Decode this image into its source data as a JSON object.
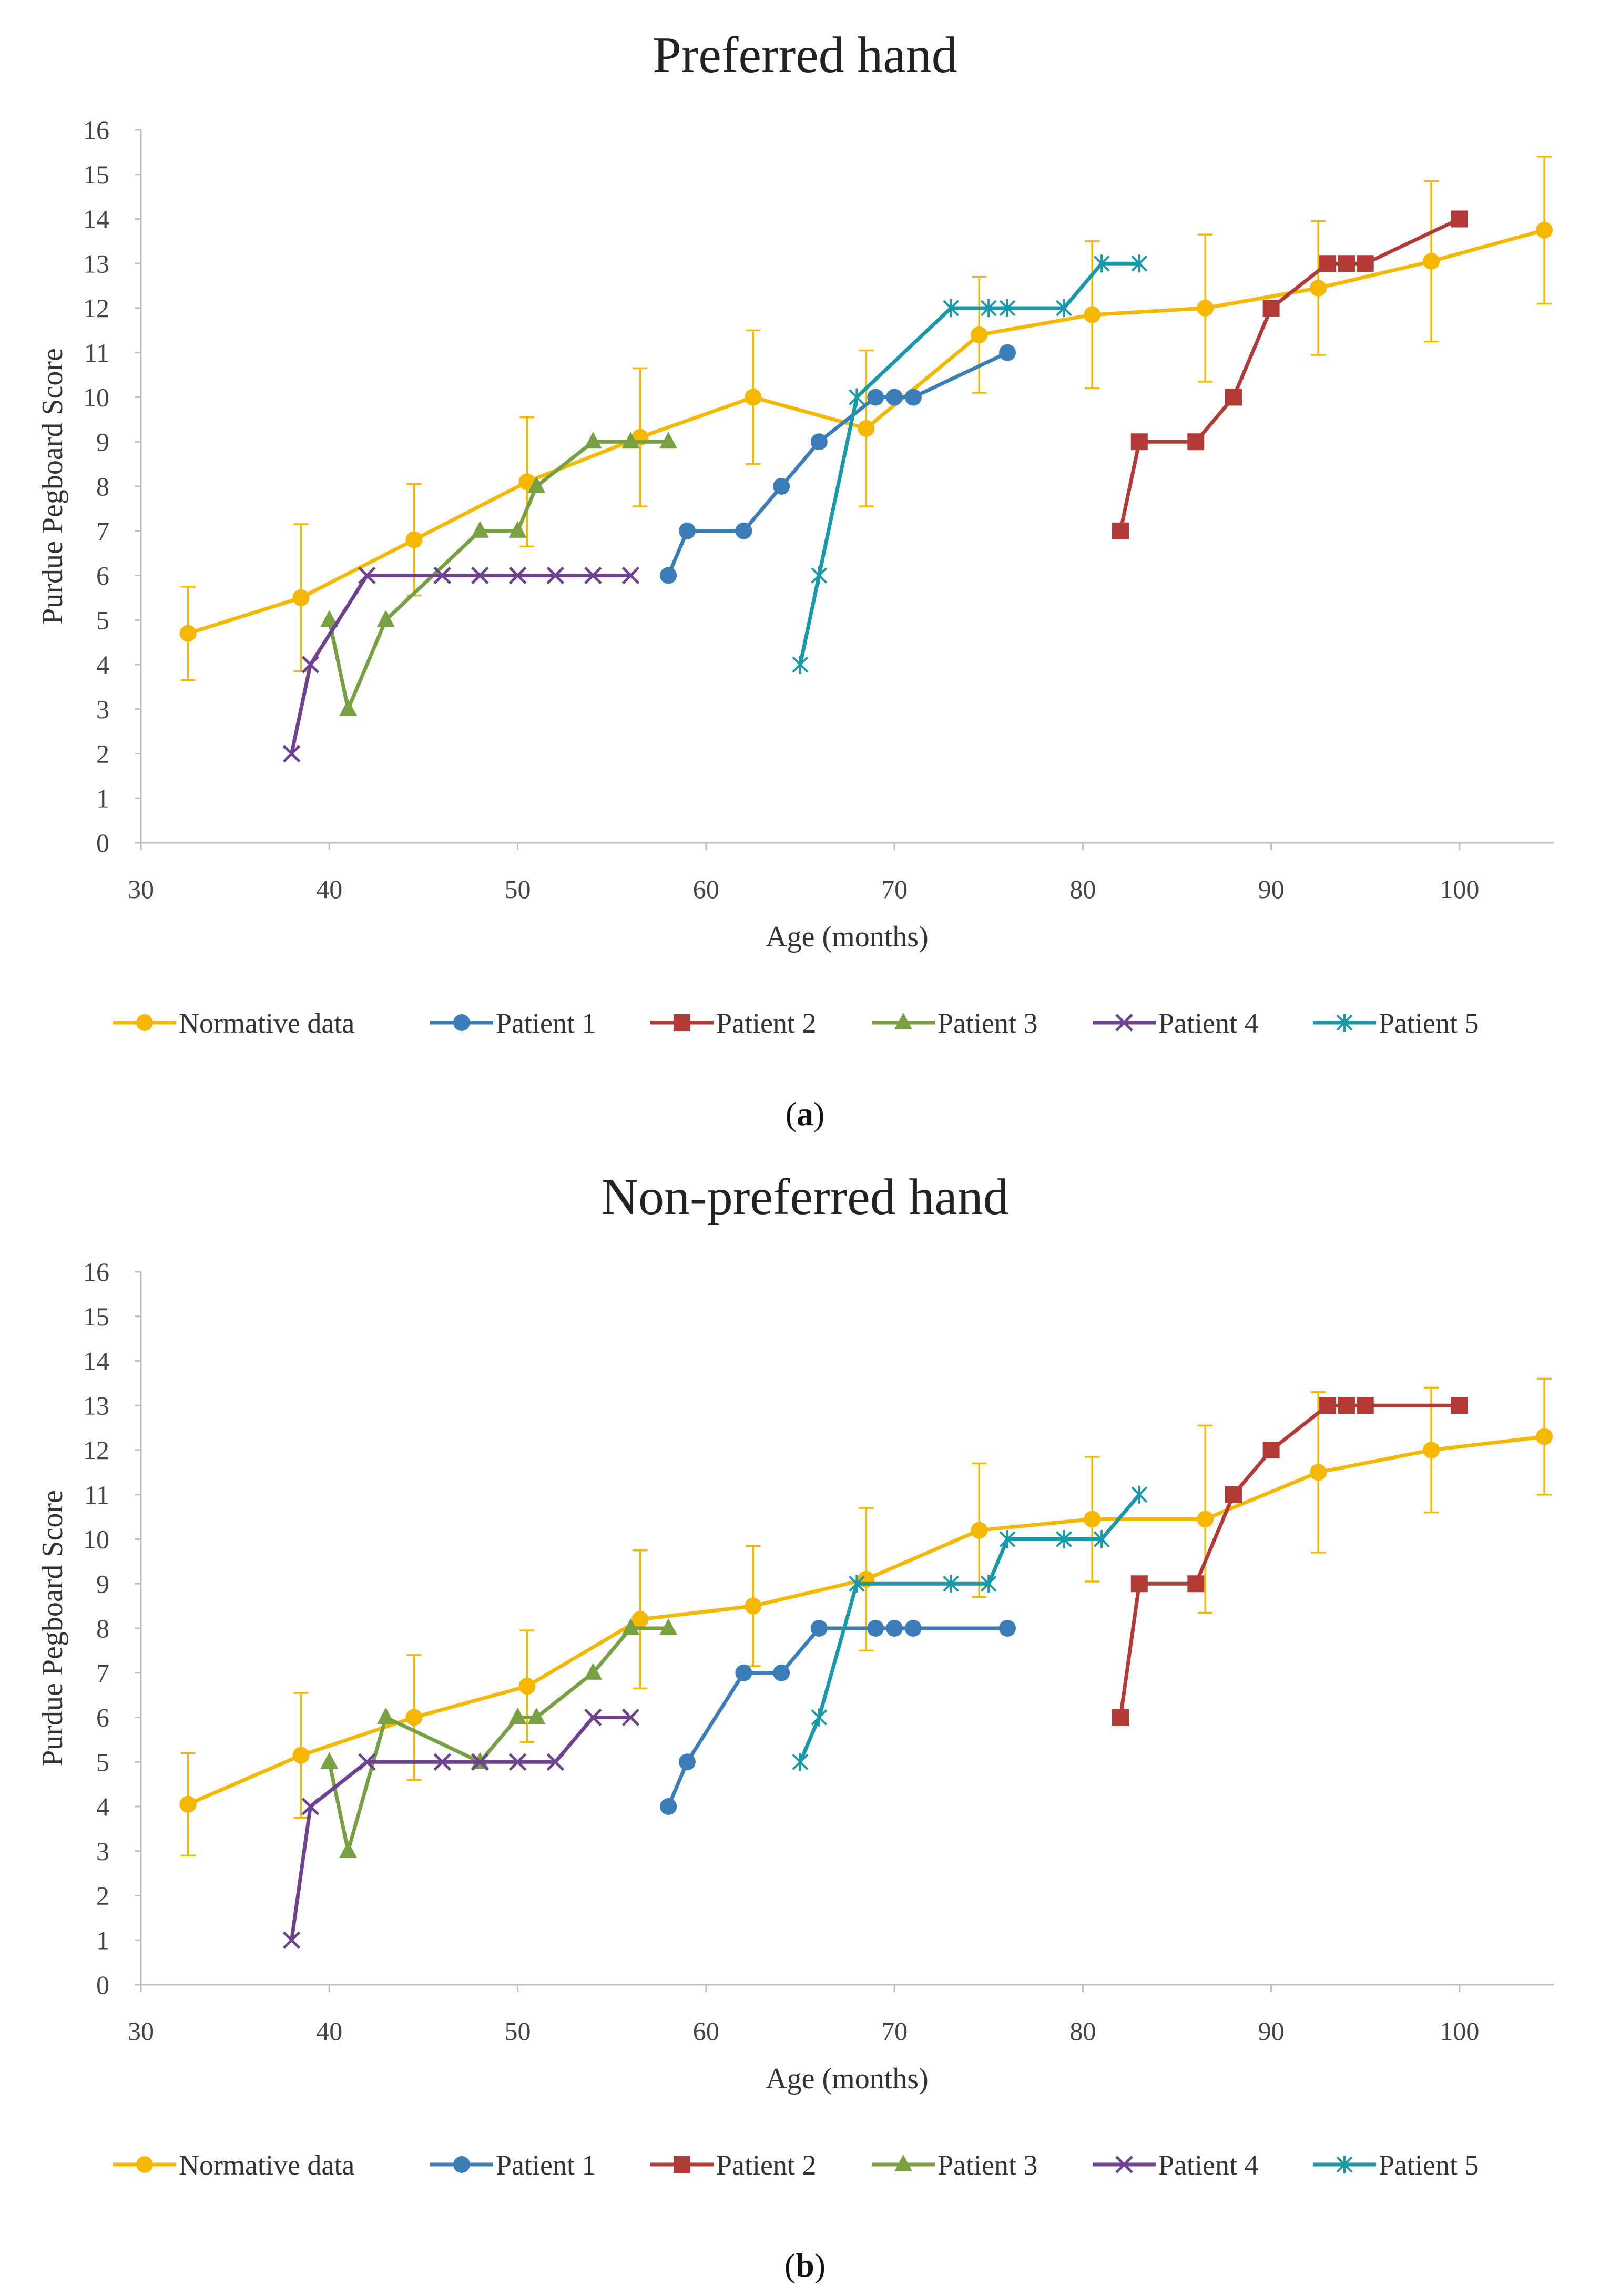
{
  "figure": {
    "colors": {
      "Normative data": "#F5B800",
      "Patient 1": "#3B7DB8",
      "Patient 2": "#B33A36",
      "Patient 3": "#77A043",
      "Patient 4": "#6E4291",
      "Patient 5": "#1799A9",
      "axis": "#BFBFBF"
    }
  },
  "chart_data": [
    {
      "type": "line",
      "title": "Preferred hand",
      "xlabel": "Age (months)",
      "ylabel": "Purdue Pegboard Score",
      "xlim": [
        30,
        105
      ],
      "ylim": [
        0,
        16
      ],
      "x_ticks": [
        30,
        40,
        50,
        60,
        70,
        80,
        90,
        100
      ],
      "y_ticks": [
        0,
        1,
        2,
        3,
        4,
        5,
        6,
        7,
        8,
        9,
        10,
        11,
        12,
        13,
        14,
        15,
        16
      ],
      "grid": false,
      "legend_position": "bottom",
      "caption_open": "(",
      "caption_letter": "a",
      "caption_close": ")",
      "series": [
        {
          "name": "Normative data",
          "marker": "circle",
          "x": [
            32.5,
            38.5,
            44.5,
            50.5,
            56.5,
            62.5,
            68.5,
            74.5,
            80.5,
            86.5,
            92.5,
            98.5,
            104.5
          ],
          "y": [
            4.7,
            5.5,
            6.8,
            8.1,
            9.1,
            10.0,
            9.3,
            11.4,
            11.85,
            12.0,
            12.45,
            13.05,
            13.75
          ],
          "error": [
            1.05,
            1.65,
            1.25,
            1.45,
            1.55,
            1.5,
            1.75,
            1.3,
            1.65,
            1.65,
            1.5,
            1.8,
            1.65
          ]
        },
        {
          "name": "Patient 1",
          "marker": "circle",
          "x": [
            58,
            59,
            62,
            64,
            66,
            69,
            70,
            71,
            76
          ],
          "y": [
            6,
            7,
            7,
            8,
            9,
            10,
            10,
            10,
            11
          ]
        },
        {
          "name": "Patient 2",
          "marker": "square",
          "x": [
            82,
            83,
            86,
            88,
            90,
            93,
            94,
            95,
            100
          ],
          "y": [
            7,
            9,
            9,
            10,
            12,
            13,
            13,
            13,
            14
          ]
        },
        {
          "name": "Patient 3",
          "marker": "triangle",
          "x": [
            40,
            41,
            43,
            48,
            50,
            51,
            54,
            56,
            58
          ],
          "y": [
            5,
            3,
            5,
            7,
            7,
            8,
            9,
            9,
            9
          ]
        },
        {
          "name": "Patient 4",
          "marker": "x",
          "x": [
            38,
            39,
            42,
            46,
            48,
            50,
            52,
            54,
            56
          ],
          "y": [
            2,
            4,
            6,
            6,
            6,
            6,
            6,
            6,
            6
          ]
        },
        {
          "name": "Patient 5",
          "marker": "star",
          "x": [
            65,
            66,
            68,
            73,
            75,
            76,
            79,
            81,
            83
          ],
          "y": [
            4,
            6,
            10,
            12,
            12,
            12,
            12,
            13,
            13
          ]
        }
      ]
    },
    {
      "type": "line",
      "title": "Non-preferred hand",
      "xlabel": "Age (months)",
      "ylabel": "Purdue Pegboard Score",
      "xlim": [
        30,
        105
      ],
      "ylim": [
        0,
        16
      ],
      "x_ticks": [
        30,
        40,
        50,
        60,
        70,
        80,
        90,
        100
      ],
      "y_ticks": [
        0,
        1,
        2,
        3,
        4,
        5,
        6,
        7,
        8,
        9,
        10,
        11,
        12,
        13,
        14,
        15,
        16
      ],
      "grid": false,
      "legend_position": "bottom",
      "caption_open": "(",
      "caption_letter": "b",
      "caption_close": ")",
      "series": [
        {
          "name": "Normative data",
          "marker": "circle",
          "x": [
            32.5,
            38.5,
            44.5,
            50.5,
            56.5,
            62.5,
            68.5,
            74.5,
            80.5,
            86.5,
            92.5,
            98.5,
            104.5
          ],
          "y": [
            4.05,
            5.15,
            6.0,
            6.7,
            8.2,
            8.5,
            9.1,
            10.2,
            10.45,
            10.45,
            11.5,
            12.0,
            12.3
          ],
          "error": [
            1.15,
            1.4,
            1.4,
            1.25,
            1.55,
            1.35,
            1.6,
            1.5,
            1.4,
            2.1,
            1.8,
            1.4,
            1.3
          ]
        },
        {
          "name": "Patient 1",
          "marker": "circle",
          "x": [
            58,
            59,
            62,
            64,
            66,
            69,
            70,
            71,
            76
          ],
          "y": [
            4,
            5,
            7,
            7,
            8,
            8,
            8,
            8,
            8
          ]
        },
        {
          "name": "Patient 2",
          "marker": "square",
          "x": [
            82,
            83,
            86,
            88,
            90,
            93,
            94,
            95,
            100
          ],
          "y": [
            6,
            9,
            9,
            11,
            12,
            13,
            13,
            13,
            13
          ]
        },
        {
          "name": "Patient 3",
          "marker": "triangle",
          "x": [
            40,
            41,
            43,
            48,
            50,
            51,
            54,
            56,
            58
          ],
          "y": [
            5,
            3,
            6,
            5,
            6,
            6,
            7,
            8,
            8
          ]
        },
        {
          "name": "Patient 4",
          "marker": "x",
          "x": [
            38,
            39,
            42,
            46,
            48,
            50,
            52,
            54,
            56
          ],
          "y": [
            1,
            4,
            5,
            5,
            5,
            5,
            5,
            6,
            6
          ]
        },
        {
          "name": "Patient 5",
          "marker": "star",
          "x": [
            65,
            66,
            68,
            73,
            75,
            76,
            79,
            81,
            83
          ],
          "y": [
            5,
            6,
            9,
            9,
            9,
            10,
            10,
            10,
            11
          ]
        }
      ]
    }
  ]
}
